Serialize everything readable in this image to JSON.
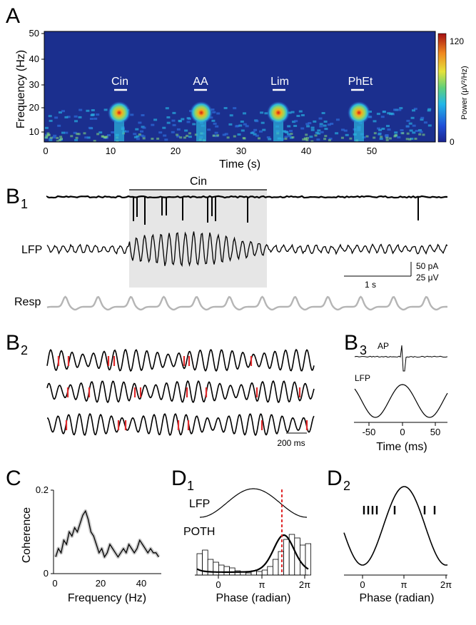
{
  "panels": {
    "A": {
      "letter": "A"
    },
    "B1": {
      "letter": "B",
      "sub": "1"
    },
    "B2": {
      "letter": "B",
      "sub": "2"
    },
    "B3": {
      "letter": "B",
      "sub": "3"
    },
    "C": {
      "letter": "C"
    },
    "D1": {
      "letter": "D",
      "sub": "1"
    },
    "D2": {
      "letter": "D",
      "sub": "2"
    }
  },
  "spectrogram": {
    "ylabel": "Frequency (Hz)",
    "xlabel": "Time (s)",
    "yticks": [
      "50",
      "40",
      "30",
      "20",
      "10"
    ],
    "xticks": [
      "0",
      "10",
      "20",
      "30",
      "40",
      "50"
    ],
    "colorbar_label": "Power (μV²/Hz)",
    "colorbar_ticks": [
      "120",
      "0"
    ],
    "odors": [
      "Cin",
      "AA",
      "Lim",
      "PhEt"
    ]
  },
  "b1": {
    "stim_label": "Cin",
    "lfp_label": "LFP",
    "resp_label": "Resp",
    "time_scale": "1 s",
    "scale_pa": "50 pA",
    "scale_uv": "25 μV"
  },
  "b2": {
    "scale": "200 ms"
  },
  "b3": {
    "ap_label": "AP",
    "lfp_label": "LFP",
    "xlabel": "Time (ms)",
    "xticks": [
      "-50",
      "0",
      "50"
    ]
  },
  "c": {
    "ylabel": "Coherence",
    "xlabel": "Frequency (Hz)",
    "yticks": [
      "0.2",
      "0"
    ],
    "xticks": [
      "0",
      "20",
      "40"
    ]
  },
  "d1": {
    "lfp_label": "LFP",
    "poth_label": "POTH",
    "xlabel": "Phase (radian)",
    "xticks": [
      "0",
      "π",
      "2π"
    ]
  },
  "d2": {
    "xlabel": "Phase (radian)",
    "xticks": [
      "0",
      "π",
      "2π"
    ]
  },
  "colors": {
    "spike_mark": "#e0292b",
    "phase_line": "#e0292b",
    "resp_trace": "#b5b5b5",
    "stim_shade": "#e6e6e6"
  }
}
